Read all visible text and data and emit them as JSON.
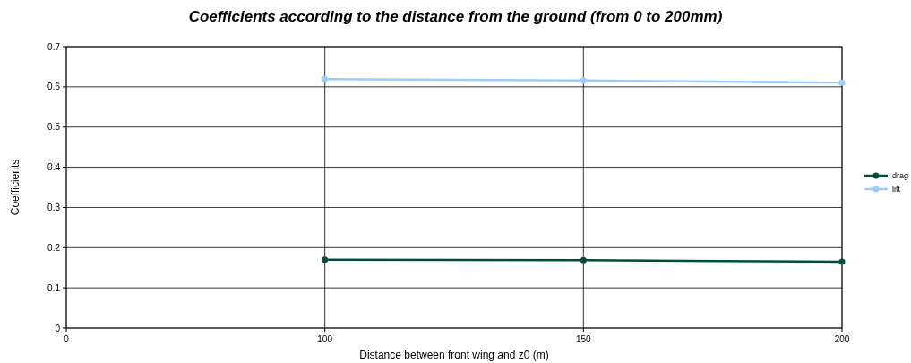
{
  "chart_data": {
    "type": "line",
    "title": "Coefficients according to the distance from the ground (from 0 to 200mm)",
    "xlabel": "Distance between front wing and z0 (m)",
    "ylabel": "Coefficients",
    "categories": [
      "0",
      "100",
      "150",
      "200"
    ],
    "series": [
      {
        "name": "drag",
        "color": "#004d40",
        "values": [
          null,
          0.17,
          0.169,
          0.165
        ]
      },
      {
        "name": "lift",
        "color": "#99ccff",
        "values": [
          null,
          0.619,
          0.616,
          0.61
        ]
      }
    ],
    "ylim": [
      0,
      0.7
    ],
    "yticks": [
      0,
      0.1,
      0.2,
      0.3,
      0.4,
      0.5,
      0.6,
      0.7
    ],
    "grid": true,
    "legend": "right",
    "marker": "circle"
  }
}
